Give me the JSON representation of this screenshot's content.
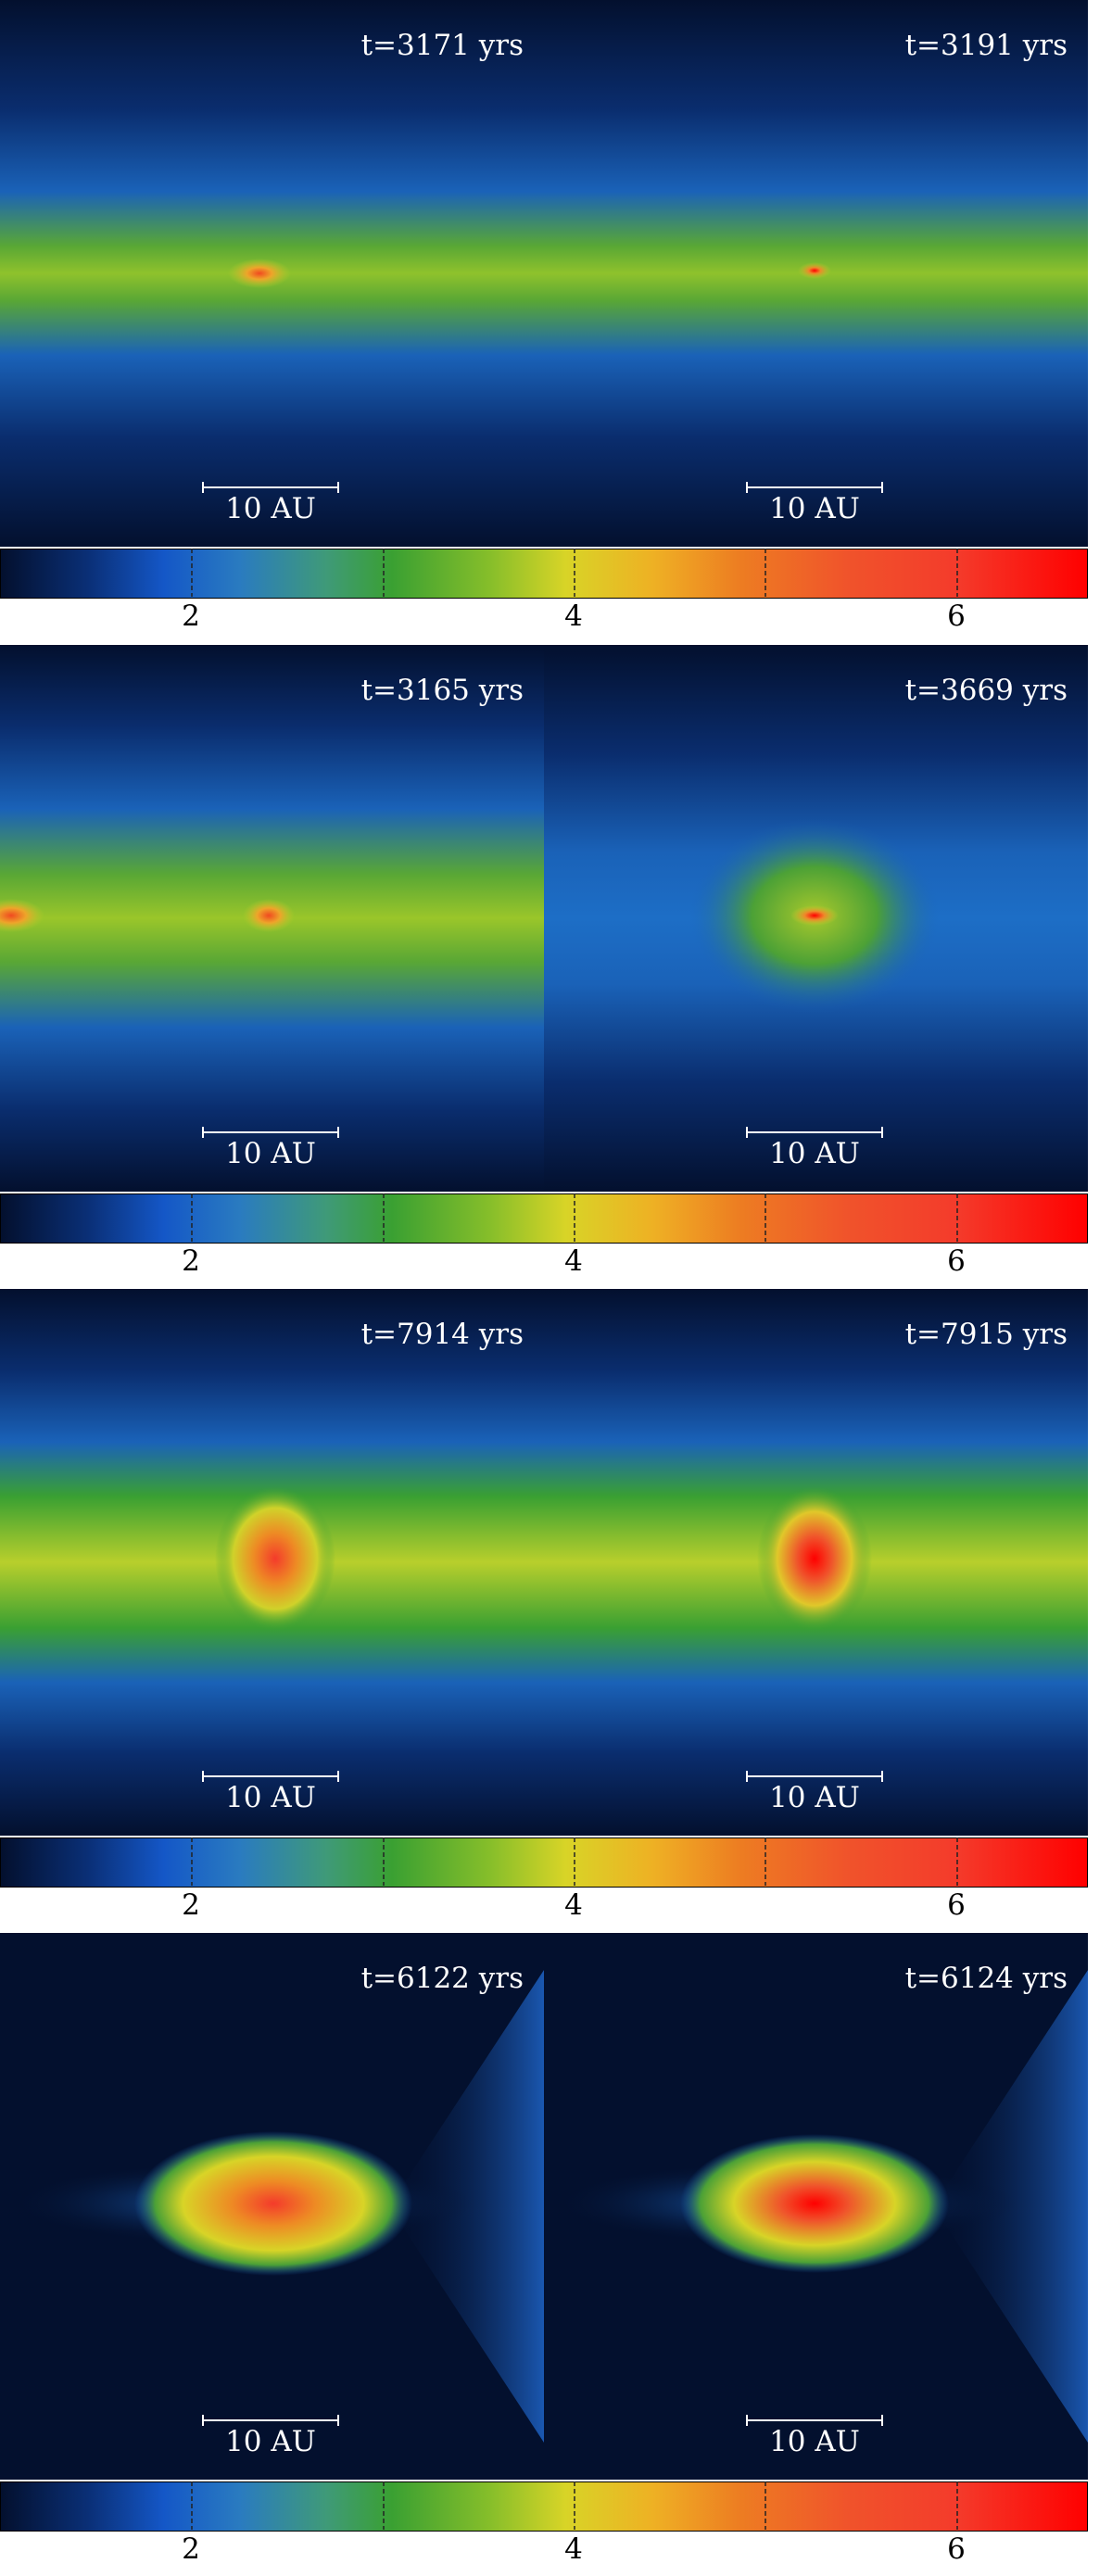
{
  "figures": [
    {
      "panels": [
        {
          "time_label": "t=3171 yrs",
          "scale_label": "10 AU"
        },
        {
          "time_label": "t=3191 yrs",
          "scale_label": "10 AU"
        }
      ],
      "colorbar": {
        "tick_labels": [
          "2",
          "4",
          "6"
        ]
      }
    },
    {
      "panels": [
        {
          "time_label": "t=3165 yrs",
          "scale_label": "10 AU"
        },
        {
          "time_label": "t=3669 yrs",
          "scale_label": "10 AU"
        }
      ],
      "colorbar": {
        "tick_labels": [
          "2",
          "4",
          "6"
        ]
      }
    },
    {
      "panels": [
        {
          "time_label": "t=7914 yrs",
          "scale_label": "10 AU"
        },
        {
          "time_label": "t=7915 yrs",
          "scale_label": "10 AU"
        }
      ],
      "colorbar": {
        "tick_labels": [
          "2",
          "4",
          "6"
        ]
      }
    },
    {
      "panels": [
        {
          "time_label": "t=6122 yrs",
          "scale_label": "10 AU"
        },
        {
          "time_label": "t=6124 yrs",
          "scale_label": "10 AU"
        }
      ],
      "colorbar": {
        "tick_labels": [
          "2",
          "4",
          "6"
        ]
      }
    }
  ],
  "colorbar_colors": [
    "#03102e",
    "#1457c7",
    "#3aa032",
    "#d8d427",
    "#ed7d22",
    "#ff0000"
  ]
}
